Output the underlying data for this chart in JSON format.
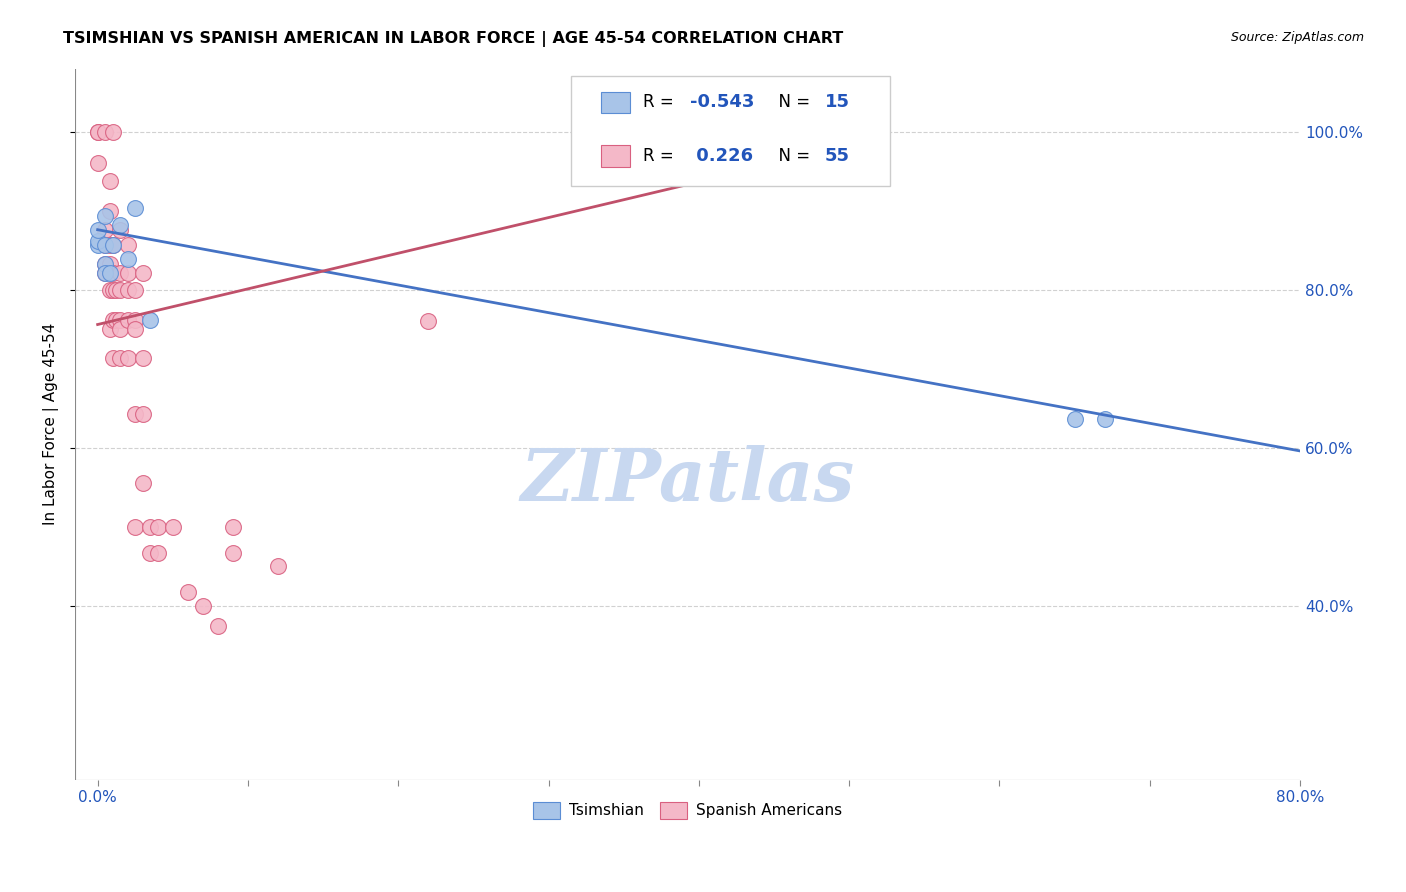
{
  "title": "TSIMSHIAN VS SPANISH AMERICAN IN LABOR FORCE | AGE 45-54 CORRELATION CHART",
  "source": "Source: ZipAtlas.com",
  "ylabel": "In Labor Force | Age 45-54",
  "xlim": [
    -0.015,
    0.8
  ],
  "ylim": [
    0.18,
    1.08
  ],
  "x_ticks": [
    0.0,
    0.1,
    0.2,
    0.3,
    0.4,
    0.5,
    0.6,
    0.7,
    0.8
  ],
  "x_tick_labels": [
    "0.0%",
    "",
    "",
    "",
    "",
    "",
    "",
    "",
    "80.0%"
  ],
  "y_ticks": [
    0.4,
    0.6,
    0.8,
    1.0
  ],
  "y_tick_labels": [
    "40.0%",
    "60.0%",
    "80.0%",
    "100.0%"
  ],
  "tsimshian_R": -0.543,
  "tsimshian_N": 15,
  "spanish_R": 0.226,
  "spanish_N": 55,
  "tsimshian_color": "#a8c4e8",
  "spanish_color": "#f4b8c8",
  "tsimshian_edge_color": "#5b8dd4",
  "spanish_edge_color": "#d96080",
  "tsimshian_line_color": "#4472c4",
  "spanish_line_color": "#c0506a",
  "watermark_text": "ZIPatlas",
  "watermark_color": "#c8d8f0",
  "tsimshian_points": [
    [
      0.0,
      0.857
    ],
    [
      0.0,
      0.862
    ],
    [
      0.0,
      0.875
    ],
    [
      0.005,
      0.893
    ],
    [
      0.005,
      0.857
    ],
    [
      0.005,
      0.833
    ],
    [
      0.005,
      0.821
    ],
    [
      0.008,
      0.821
    ],
    [
      0.01,
      0.857
    ],
    [
      0.015,
      0.882
    ],
    [
      0.02,
      0.839
    ],
    [
      0.025,
      0.903
    ],
    [
      0.035,
      0.762
    ],
    [
      0.65,
      0.637
    ],
    [
      0.67,
      0.637
    ]
  ],
  "spanish_points": [
    [
      0.0,
      1.0
    ],
    [
      0.0,
      1.0
    ],
    [
      0.0,
      0.96
    ],
    [
      0.005,
      1.0
    ],
    [
      0.005,
      0.875
    ],
    [
      0.005,
      0.857
    ],
    [
      0.005,
      0.833
    ],
    [
      0.005,
      0.821
    ],
    [
      0.008,
      0.938
    ],
    [
      0.008,
      0.9
    ],
    [
      0.008,
      0.857
    ],
    [
      0.008,
      0.833
    ],
    [
      0.008,
      0.8
    ],
    [
      0.008,
      0.75
    ],
    [
      0.01,
      1.0
    ],
    [
      0.01,
      0.857
    ],
    [
      0.01,
      0.821
    ],
    [
      0.01,
      0.8
    ],
    [
      0.01,
      0.762
    ],
    [
      0.01,
      0.714
    ],
    [
      0.012,
      0.8
    ],
    [
      0.012,
      0.762
    ],
    [
      0.015,
      0.875
    ],
    [
      0.015,
      0.821
    ],
    [
      0.015,
      0.8
    ],
    [
      0.015,
      0.762
    ],
    [
      0.015,
      0.75
    ],
    [
      0.015,
      0.714
    ],
    [
      0.02,
      0.857
    ],
    [
      0.02,
      0.821
    ],
    [
      0.02,
      0.8
    ],
    [
      0.02,
      0.762
    ],
    [
      0.02,
      0.714
    ],
    [
      0.025,
      0.8
    ],
    [
      0.025,
      0.762
    ],
    [
      0.025,
      0.75
    ],
    [
      0.025,
      0.643
    ],
    [
      0.025,
      0.5
    ],
    [
      0.03,
      0.821
    ],
    [
      0.03,
      0.714
    ],
    [
      0.03,
      0.643
    ],
    [
      0.03,
      0.556
    ],
    [
      0.035,
      0.5
    ],
    [
      0.035,
      0.467
    ],
    [
      0.04,
      0.5
    ],
    [
      0.04,
      0.467
    ],
    [
      0.05,
      0.5
    ],
    [
      0.06,
      0.417
    ],
    [
      0.07,
      0.4
    ],
    [
      0.08,
      0.375
    ],
    [
      0.09,
      0.5
    ],
    [
      0.09,
      0.467
    ],
    [
      0.12,
      0.45
    ],
    [
      0.22,
      0.76
    ],
    [
      0.35,
      1.0
    ]
  ],
  "tsimshian_line_x": [
    0.0,
    0.8
  ],
  "tsimshian_line_y": [
    0.876,
    0.596
  ],
  "spanish_line_x": [
    0.0,
    0.43
  ],
  "spanish_line_y": [
    0.756,
    0.95
  ]
}
